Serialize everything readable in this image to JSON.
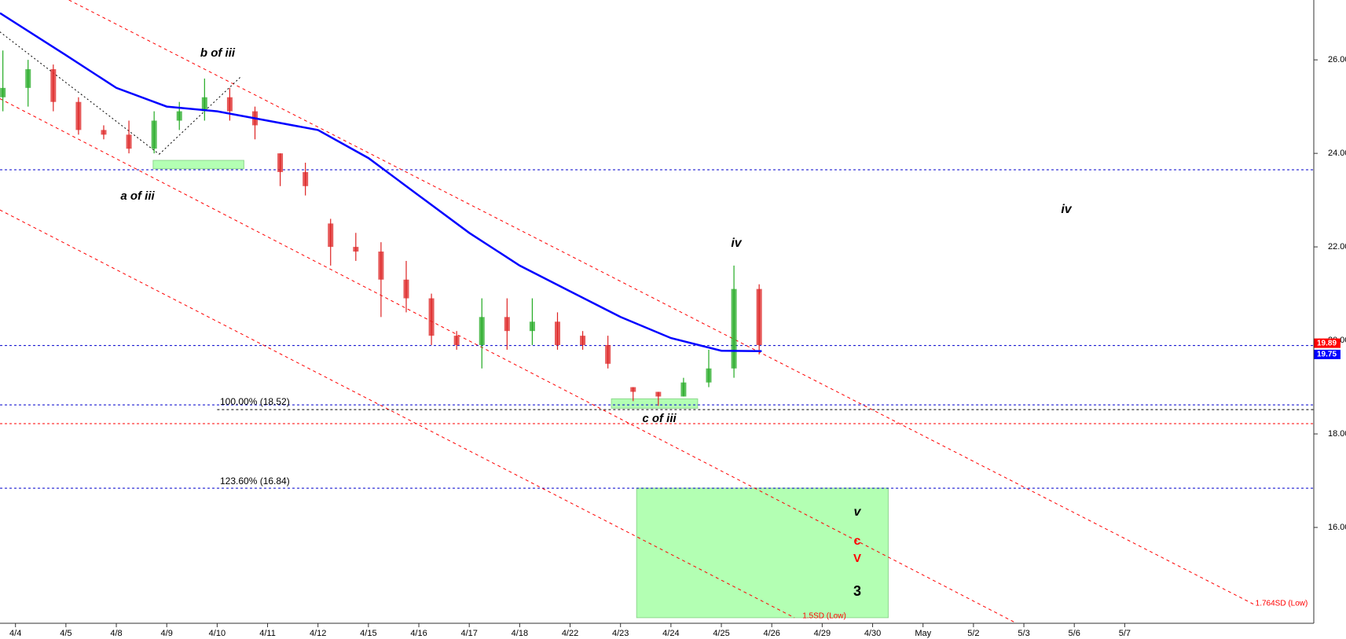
{
  "chart_data": {
    "type": "candlestick",
    "xlim": [
      -0.307,
      25.75
    ],
    "ylim": [
      13.95,
      27.28
    ],
    "xticks": [
      {
        "value": 0,
        "label": "4/4"
      },
      {
        "value": 1,
        "label": "4/5"
      },
      {
        "value": 2,
        "label": "4/8"
      },
      {
        "value": 3,
        "label": "4/9"
      },
      {
        "value": 4,
        "label": "4/10"
      },
      {
        "value": 5,
        "label": "4/11"
      },
      {
        "value": 6,
        "label": "4/12"
      },
      {
        "value": 7,
        "label": "4/15"
      },
      {
        "value": 8,
        "label": "4/16"
      },
      {
        "value": 9,
        "label": "4/17"
      },
      {
        "value": 10,
        "label": "4/18"
      },
      {
        "value": 11,
        "label": "4/22"
      },
      {
        "value": 12,
        "label": "4/23"
      },
      {
        "value": 13,
        "label": "4/24"
      },
      {
        "value": 14,
        "label": "4/25"
      },
      {
        "value": 15,
        "label": "4/26"
      },
      {
        "value": 16,
        "label": "4/29"
      },
      {
        "value": 17,
        "label": "4/30"
      },
      {
        "value": 18,
        "label": "May"
      },
      {
        "value": 19,
        "label": "5/2"
      },
      {
        "value": 20,
        "label": "5/3"
      },
      {
        "value": 21,
        "label": "5/6"
      },
      {
        "value": 22,
        "label": "5/7"
      }
    ],
    "yticks": [
      {
        "value": 16,
        "label": "16.00"
      },
      {
        "value": 18,
        "label": "18.00"
      },
      {
        "value": 20,
        "label": "20.00"
      },
      {
        "value": 22,
        "label": "22.00"
      },
      {
        "value": 24,
        "label": "24.00"
      },
      {
        "value": 26,
        "label": "26.00"
      }
    ],
    "up_color": "#22aa22",
    "down_color": "#dd2222",
    "ohlc": {
      "x": [
        -0.25,
        0.25,
        0.75,
        1.25,
        1.75,
        2.25,
        2.75,
        3.25,
        3.75,
        4.25,
        4.75,
        5.25,
        5.75,
        6.25,
        6.75,
        7.25,
        7.75,
        8.25,
        8.75,
        9.25,
        9.75,
        10.25,
        10.75,
        11.25,
        11.75,
        12.25,
        12.75,
        13.25,
        13.75,
        14.25,
        14.75
      ],
      "open": [
        25.2,
        25.4,
        25.8,
        25.1,
        24.5,
        24.4,
        24.1,
        24.7,
        24.9,
        25.2,
        24.9,
        24.0,
        23.6,
        22.5,
        22.0,
        21.9,
        21.3,
        20.9,
        20.1,
        19.9,
        20.5,
        20.2,
        20.4,
        20.1,
        19.9,
        19.0,
        18.9,
        18.8,
        19.1,
        19.4,
        21.1
      ],
      "high": [
        26.2,
        26.0,
        25.9,
        25.2,
        24.6,
        24.7,
        24.9,
        25.1,
        25.6,
        25.4,
        25.0,
        24.0,
        23.8,
        22.6,
        22.3,
        22.1,
        21.7,
        21.0,
        20.2,
        20.9,
        20.9,
        20.9,
        20.6,
        20.2,
        20.1,
        19.0,
        18.9,
        19.2,
        19.8,
        21.6,
        21.2
      ],
      "low": [
        24.9,
        25.0,
        24.9,
        24.4,
        24.3,
        24.0,
        24.0,
        24.5,
        24.7,
        24.7,
        24.3,
        23.3,
        23.1,
        21.6,
        21.7,
        20.5,
        20.6,
        19.9,
        19.8,
        19.4,
        19.8,
        19.9,
        19.8,
        19.8,
        19.4,
        18.7,
        18.6,
        18.8,
        19.0,
        19.2,
        19.7
      ],
      "close": [
        25.4,
        25.8,
        25.1,
        24.5,
        24.4,
        24.1,
        24.7,
        24.9,
        25.2,
        24.9,
        24.6,
        23.6,
        23.3,
        22.0,
        21.9,
        21.3,
        20.9,
        20.1,
        19.9,
        20.5,
        20.2,
        20.4,
        19.9,
        19.9,
        19.5,
        18.9,
        18.8,
        19.1,
        19.4,
        21.1,
        19.9
      ]
    },
    "moving_average": {
      "color": "#0000ff",
      "x": [
        -0.307,
        1,
        2,
        3,
        4,
        5,
        6,
        7,
        8,
        9,
        10,
        11,
        12,
        13,
        14,
        14.8
      ],
      "values": [
        27.0,
        26.1,
        25.4,
        25.0,
        24.9,
        24.7,
        24.5,
        23.9,
        23.1,
        22.3,
        21.6,
        21.05,
        20.5,
        20.05,
        19.78,
        19.77
      ]
    },
    "hlines": [
      {
        "value": 23.65,
        "color": "#0000cc"
      },
      {
        "value": 19.89,
        "color": "#0000cc"
      },
      {
        "value": 18.62,
        "color": "#0000cc"
      },
      {
        "value": 18.52,
        "color": "#000000",
        "x_start": 4
      },
      {
        "value": 18.22,
        "color": "#ff0000"
      },
      {
        "value": 16.84,
        "color": "#0000cc"
      }
    ],
    "channels": [
      {
        "color": "#ff0000",
        "x": [
          1.06,
          24.57
        ],
        "values": [
          27.28,
          14.35
        ]
      },
      {
        "color": "#ff0000",
        "x": [
          -0.31,
          19.8
        ],
        "values": [
          25.17,
          13.98
        ]
      },
      {
        "color": "#ff0000",
        "x": [
          -0.31,
          15.45
        ],
        "values": [
          22.79,
          14.07
        ]
      },
      {
        "color": "#000000",
        "x": [
          -0.31,
          2.85
        ],
        "values": [
          26.6,
          23.98
        ]
      },
      {
        "color": "#000000",
        "x": [
          2.85,
          4.46
        ],
        "values": [
          23.98,
          25.63
        ]
      }
    ],
    "zones": [
      {
        "color": "#b3ffb3",
        "x": [
          2.73,
          4.53
        ],
        "y": [
          23.67,
          23.85
        ]
      },
      {
        "color": "#b3ffb3",
        "x": [
          11.82,
          13.53
        ],
        "y": [
          18.55,
          18.75
        ]
      },
      {
        "color": "#b3ffb3",
        "x": [
          12.32,
          17.31
        ],
        "y": [
          14.07,
          16.84
        ]
      }
    ],
    "price_tags": [
      {
        "value": 19.89,
        "label": "19.89",
        "color": "#ff0000"
      },
      {
        "value": 19.75,
        "label": "19.75",
        "color": "#0000ff"
      }
    ],
    "annotations": [
      {
        "text": "b of iii",
        "color": "#000000"
      },
      {
        "text": "a of iii",
        "color": "#000000"
      },
      {
        "text": "iv",
        "color": "#000000"
      },
      {
        "text": "iv",
        "color": "#000000"
      },
      {
        "text": "c of iii",
        "color": "#000000"
      },
      {
        "text": "v",
        "color": "#000000"
      },
      {
        "text": "c",
        "color": "#ff0000"
      },
      {
        "text": "V",
        "color": "#ff0000"
      },
      {
        "text": "3",
        "color": "#000000"
      },
      {
        "text": "100.00% (18.52)",
        "color": "#000000"
      },
      {
        "text": "123.60% (16.84)",
        "color": "#000000"
      },
      {
        "text": "1.5SD (Low)",
        "color": "#ff0000"
      },
      {
        "text": "1.764SD (Low)",
        "color": "#ff0000"
      }
    ]
  }
}
